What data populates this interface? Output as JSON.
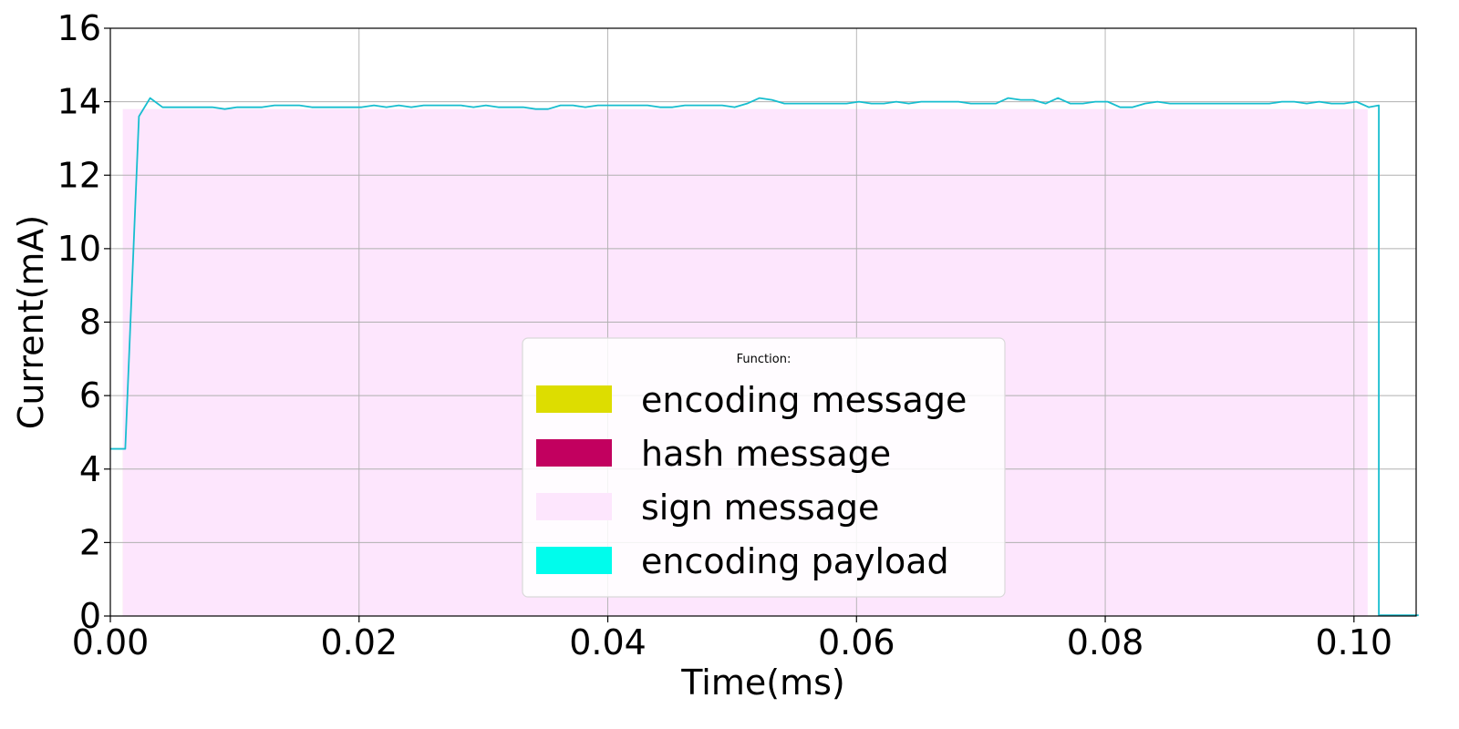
{
  "chart_data": {
    "type": "line",
    "title": "",
    "xlabel": "Time(ms)",
    "ylabel": "Current(mA)",
    "xlim": [
      0.0,
      0.105
    ],
    "ylim": [
      0,
      16
    ],
    "xticks": [
      "0.00",
      "0.02",
      "0.04",
      "0.06",
      "0.08",
      "0.10"
    ],
    "xtick_values": [
      0.0,
      0.02,
      0.04,
      0.06,
      0.08,
      0.1
    ],
    "yticks": [
      "0",
      "2",
      "4",
      "6",
      "8",
      "10",
      "12",
      "14",
      "16"
    ],
    "ytick_values": [
      0,
      2,
      4,
      6,
      8,
      10,
      12,
      14,
      16
    ],
    "grid": true,
    "legend": {
      "title": "Function:",
      "placement": "lower-center",
      "entries": [
        {
          "label": "encoding message",
          "color": "#dddd00"
        },
        {
          "label": "hash message",
          "color": "#c2005f"
        },
        {
          "label": "sign message",
          "color": "#fde6fd"
        },
        {
          "label": "encoding payload",
          "color": "#00fcec"
        }
      ]
    },
    "regions": [
      {
        "name": "encoding message",
        "x_start": 0.001,
        "x_end": 0.0011,
        "color": "#f5e6c8"
      },
      {
        "name": "sign message",
        "x_start": 0.001,
        "x_end": 0.1011,
        "color": "#fde6fd"
      }
    ],
    "line_color": "#17becf",
    "series": [
      {
        "x": [
          0.0,
          0.0012,
          0.0023,
          0.0032,
          0.0042,
          0.0052,
          0.0062,
          0.0072,
          0.0082,
          0.0092,
          0.0102,
          0.0112,
          0.0122,
          0.0132,
          0.0142,
          0.0152,
          0.0162,
          0.0172,
          0.0182,
          0.0192,
          0.0202,
          0.0212,
          0.0222,
          0.0232,
          0.0242,
          0.0252,
          0.0262,
          0.0272,
          0.0282,
          0.0292,
          0.0302,
          0.0312,
          0.0322,
          0.0332,
          0.0342,
          0.0352,
          0.0362,
          0.0372,
          0.0382,
          0.0392,
          0.0402,
          0.0412,
          0.0422,
          0.0432,
          0.0442,
          0.0452,
          0.0462,
          0.0472,
          0.0482,
          0.0492,
          0.0502,
          0.0512,
          0.0522,
          0.0532,
          0.0542,
          0.0552,
          0.0562,
          0.0572,
          0.0582,
          0.0592,
          0.0602,
          0.0612,
          0.0622,
          0.0632,
          0.0642,
          0.0652,
          0.0662,
          0.0672,
          0.0682,
          0.0692,
          0.0702,
          0.0712,
          0.0722,
          0.0732,
          0.0742,
          0.0752,
          0.0762,
          0.0772,
          0.0782,
          0.0792,
          0.0802,
          0.0812,
          0.0822,
          0.0832,
          0.0842,
          0.0852,
          0.0862,
          0.0872,
          0.0882,
          0.0892,
          0.0902,
          0.0912,
          0.0922,
          0.0932,
          0.0942,
          0.0952,
          0.0962,
          0.0972,
          0.0982,
          0.0992,
          0.1002,
          0.1012,
          0.102,
          0.102,
          0.1052
        ],
        "y": [
          4.55,
          4.55,
          13.6,
          14.1,
          13.85,
          13.85,
          13.85,
          13.85,
          13.85,
          13.8,
          13.85,
          13.85,
          13.85,
          13.9,
          13.9,
          13.9,
          13.85,
          13.85,
          13.85,
          13.85,
          13.85,
          13.9,
          13.85,
          13.9,
          13.85,
          13.9,
          13.9,
          13.9,
          13.9,
          13.85,
          13.9,
          13.85,
          13.85,
          13.85,
          13.8,
          13.8,
          13.9,
          13.9,
          13.85,
          13.9,
          13.9,
          13.9,
          13.9,
          13.9,
          13.85,
          13.85,
          13.9,
          13.9,
          13.9,
          13.9,
          13.85,
          13.95,
          14.1,
          14.05,
          13.95,
          13.95,
          13.95,
          13.95,
          13.95,
          13.95,
          14.0,
          13.95,
          13.95,
          14.0,
          13.95,
          14.0,
          14.0,
          14.0,
          14.0,
          13.95,
          13.95,
          13.95,
          14.1,
          14.05,
          14.05,
          13.95,
          14.1,
          13.95,
          13.95,
          14.0,
          14.0,
          13.85,
          13.85,
          13.95,
          14.0,
          13.95,
          13.95,
          13.95,
          13.95,
          13.95,
          13.95,
          13.95,
          13.95,
          13.95,
          14.0,
          14.0,
          13.95,
          14.0,
          13.95,
          13.95,
          14.0,
          13.85,
          13.9,
          0.02,
          0.02
        ]
      }
    ]
  }
}
